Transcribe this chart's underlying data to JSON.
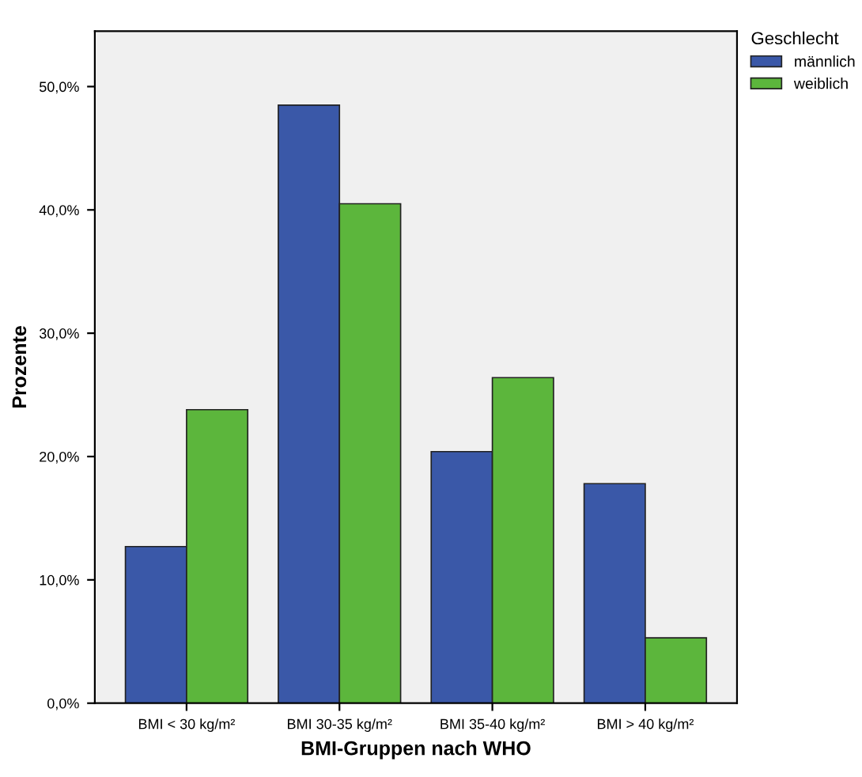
{
  "chart_data": {
    "type": "bar",
    "xlabel": "BMI-Gruppen nach WHO",
    "ylabel": "Prozente",
    "legend_title": "Geschlecht",
    "legend": "top right",
    "grid": false,
    "categories": [
      "BMI < 30 kg/m²",
      "BMI 30-35 kg/m²",
      "BMI 35-40 kg/m²",
      "BMI > 40 kg/m²"
    ],
    "series": [
      {
        "name": "männlich",
        "color": "#3a58a8",
        "values": [
          12.7,
          48.5,
          20.4,
          17.8
        ]
      },
      {
        "name": "weiblich",
        "color": "#5cb63c",
        "values": [
          23.8,
          40.5,
          26.4,
          5.3
        ]
      }
    ],
    "ylim": [
      0,
      54.5
    ],
    "yticks": [
      {
        "value": 0,
        "label": "0,0%"
      },
      {
        "value": 10,
        "label": "10,0%"
      },
      {
        "value": 20,
        "label": "20,0%"
      },
      {
        "value": 30,
        "label": "30,0%"
      },
      {
        "value": 40,
        "label": "40,0%"
      },
      {
        "value": 50,
        "label": "50,0%"
      }
    ]
  }
}
